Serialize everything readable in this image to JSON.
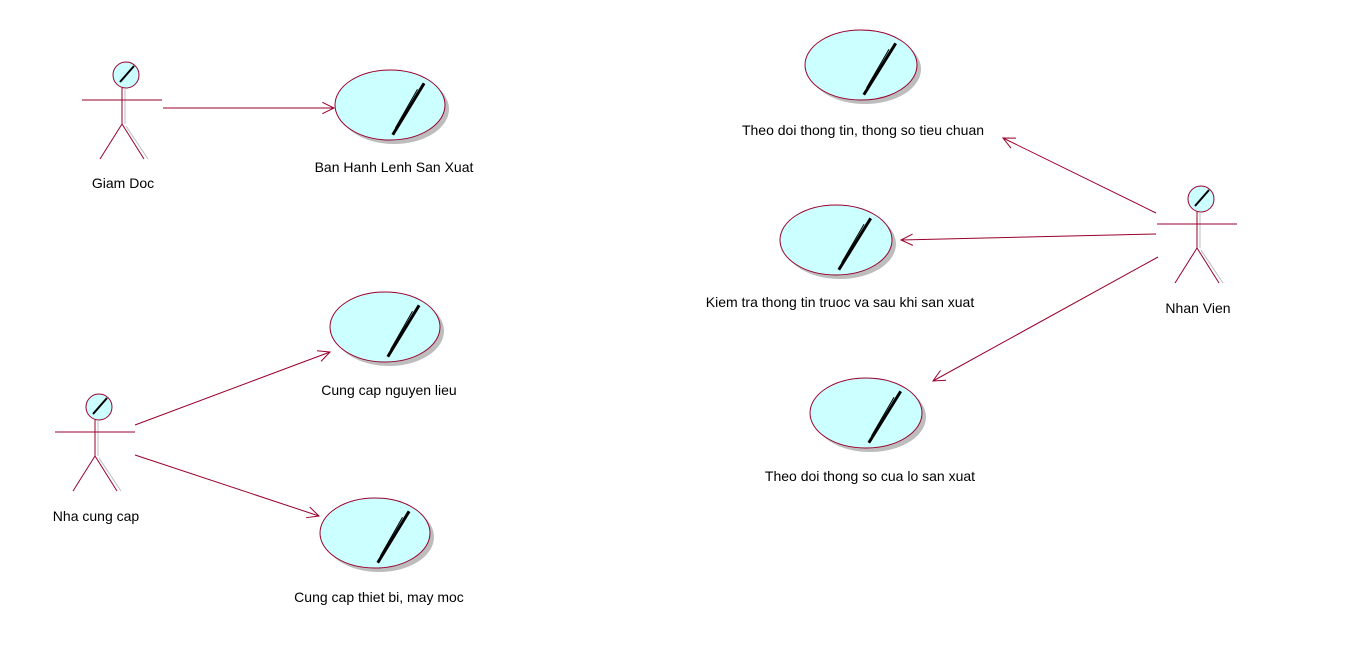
{
  "colors": {
    "line": "#99002d",
    "usecase_fill": "#ccffff",
    "usecase_stroke": "#99002d",
    "shadow": "#bdbdbd",
    "actor_head_fill": "#ccffff"
  },
  "actors": [
    {
      "id": "giam-doc",
      "name": "Giam Doc"
    },
    {
      "id": "nha-cung-cap",
      "name": "Nha cung cap"
    },
    {
      "id": "nhan-vien",
      "name": "Nhan Vien"
    }
  ],
  "use_cases": [
    {
      "id": "ban-hanh",
      "name": "Ban Hanh Lenh San Xuat"
    },
    {
      "id": "cung-cap-nguyen-lieu",
      "name": "Cung cap nguyen lieu"
    },
    {
      "id": "cung-cap-thiet-bi",
      "name": "Cung cap thiet bi, may moc"
    },
    {
      "id": "theo-doi-thong-tin",
      "name": "Theo doi thong tin, thong so tieu chuan"
    },
    {
      "id": "kiem-tra",
      "name": "Kiem tra thong tin truoc va sau khi san xuat"
    },
    {
      "id": "theo-doi-lo",
      "name": "Theo doi thong so cua lo san xuat"
    }
  ],
  "associations": [
    {
      "from": "giam-doc",
      "to": "ban-hanh"
    },
    {
      "from": "nha-cung-cap",
      "to": "cung-cap-nguyen-lieu"
    },
    {
      "from": "nha-cung-cap",
      "to": "cung-cap-thiet-bi"
    },
    {
      "from": "nhan-vien",
      "to": "theo-doi-thong-tin"
    },
    {
      "from": "nhan-vien",
      "to": "kiem-tra"
    },
    {
      "from": "nhan-vien",
      "to": "theo-doi-lo"
    }
  ]
}
